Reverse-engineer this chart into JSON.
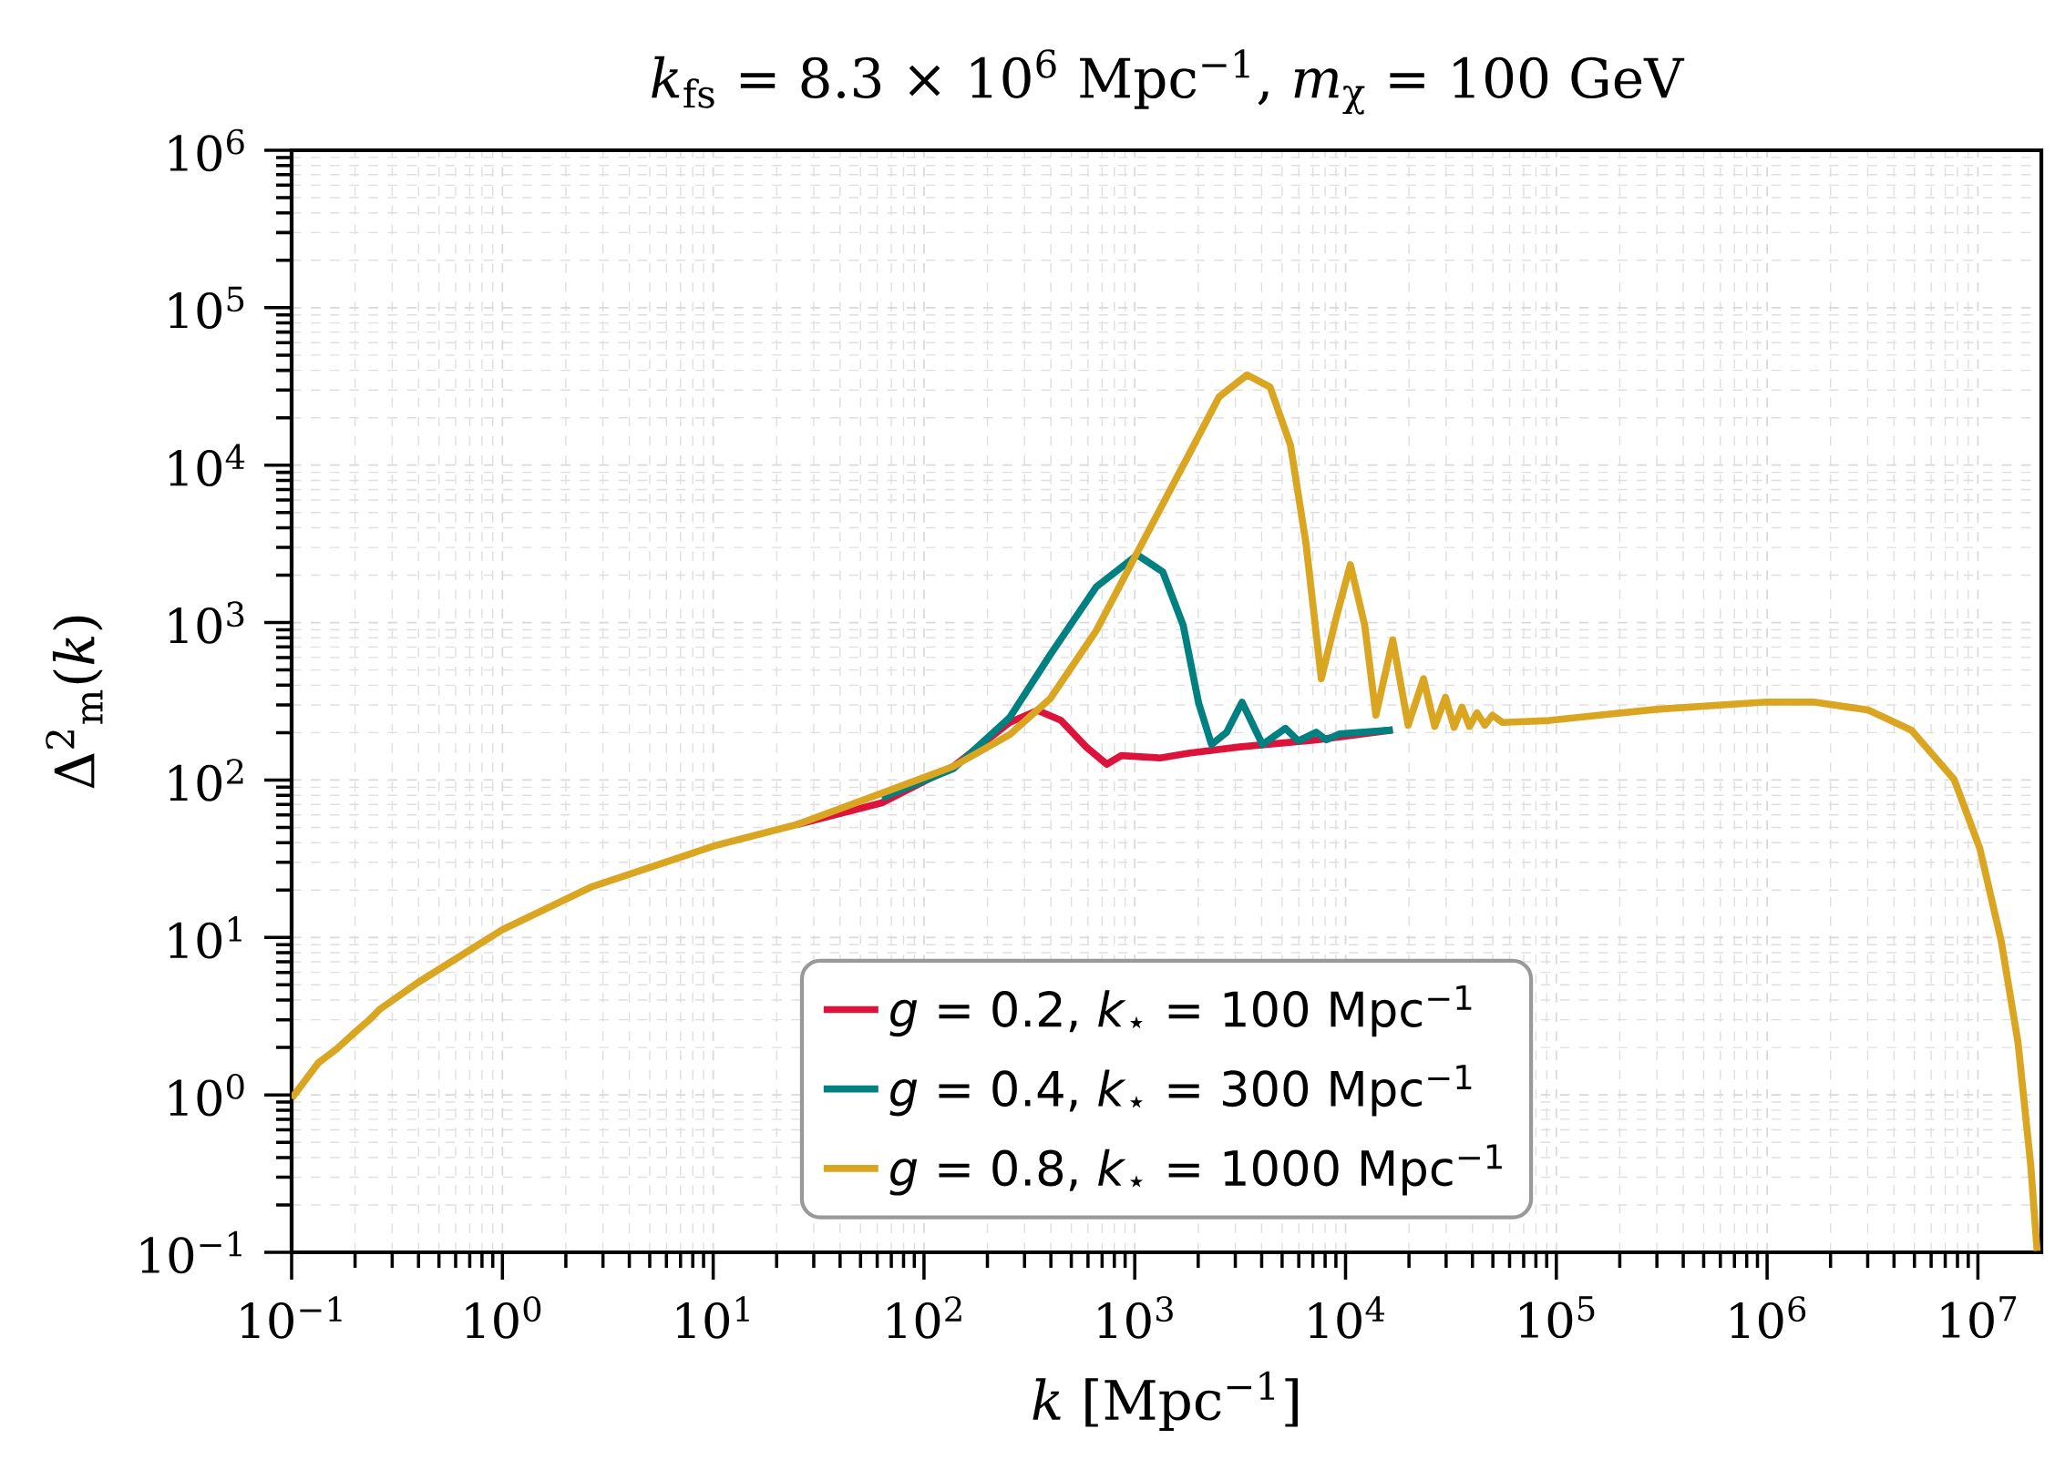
{
  "chart_data": {
    "type": "line",
    "title": "*k*$_{fs}$ = 8.3 × 10$^{6}$ Mpc$^{−1}$,    *m*$_{χ}$ = 100 GeV",
    "xlabel": "*k* [Mpc$^{−1}$]",
    "ylabel": "Δ$^{2}$$_{m}$(*k*)",
    "log": "xy",
    "grid": true,
    "legend": "bottom",
    "xlim": [
      0.1,
      20000000
    ],
    "ylim": [
      0.1,
      1000000
    ],
    "xticks": [
      {
        "value": 0.1,
        "label": "10$^{−1}$"
      },
      {
        "value": 1,
        "label": "10$^{0}$"
      },
      {
        "value": 10,
        "label": "10$^{1}$"
      },
      {
        "value": 100,
        "label": "10$^{2}$"
      },
      {
        "value": 1000,
        "label": "10$^{3}$"
      },
      {
        "value": 10000,
        "label": "10$^{4}$"
      },
      {
        "value": 100000,
        "label": "10$^{5}$"
      },
      {
        "value": 1000000,
        "label": "10$^{6}$"
      },
      {
        "value": 10000000,
        "label": "10$^{7}$"
      }
    ],
    "yticks": [
      {
        "value": 0.1,
        "label": "10$^{−1}$"
      },
      {
        "value": 1,
        "label": "10$^{0}$"
      },
      {
        "value": 10,
        "label": "10$^{1}$"
      },
      {
        "value": 100,
        "label": "10$^{2}$"
      },
      {
        "value": 1000,
        "label": "10$^{3}$"
      },
      {
        "value": 10000,
        "label": "10$^{4}$"
      },
      {
        "value": 100000,
        "label": "10$^{5}$"
      },
      {
        "value": 1000000,
        "label": "10$^{6}$"
      }
    ],
    "series": [
      {
        "name": "*g* = 0.2,  *k*$_{⋆}$ = 100 Mpc$^{−1}$",
        "color": "#dc143c",
        "x": [
          24.8,
          63.1,
          138,
          255,
          346,
          445,
          589,
          736,
          863,
          1321,
          1799,
          3141,
          7261,
          16750
        ],
        "values": [
          52,
          71.6,
          122,
          232,
          277,
          240,
          162,
          126,
          143,
          138,
          148,
          162,
          180,
          208
        ]
      },
      {
        "name": "*g* = 0.4,  *k*$_{⋆}$ = 300 Mpc$^{−1}$",
        "color": "#008080",
        "x": [
          63.1,
          138,
          255,
          398,
          658,
          1028,
          1358,
          1698,
          2009,
          2312,
          2729,
          3228,
          4036,
          5188,
          5970,
          7261,
          8110,
          9333,
          16750
        ],
        "values": [
          76.9,
          118,
          249,
          627,
          1690,
          2690,
          2100,
          959,
          308,
          168,
          201,
          312,
          168,
          213,
          177,
          201,
          180,
          196,
          208
        ]
      },
      {
        "name": "*g* = 0.8,  *k*$_{⋆}$ = 1000 Mpc$^{−1}$",
        "color": "#daa520",
        "x": [
          0.1,
          0.134,
          0.163,
          0.2,
          0.234,
          0.262,
          0.4,
          1,
          2.66,
          10,
          24.8,
          63.1,
          138,
          255,
          398,
          658,
          1028,
          1799,
          2512,
          3412,
          4385,
          5483,
          6486,
          7674,
          9078,
          10540,
          12330,
          13930,
          16750,
          19820,
          23440,
          26490,
          29790,
          32730,
          35650,
          38730,
          42070,
          45810,
          49770,
          55590,
          92700,
          296700,
          994000,
          1660000,
          3030000,
          4840000,
          7710000,
          10200000,
          12900000,
          15500000,
          17800000,
          19100000
        ],
        "values": [
          0.95,
          1.6,
          1.95,
          2.5,
          3.0,
          3.5,
          5.2,
          11.2,
          21,
          38,
          52,
          82.6,
          122,
          194,
          330,
          893,
          2790,
          11560,
          27160,
          37410,
          31330,
          13340,
          3210,
          440,
          1107,
          2333,
          959,
          258,
          776,
          223,
          440,
          219,
          335,
          216,
          290,
          219,
          267,
          223,
          258,
          232,
          239,
          281,
          313,
          313,
          278,
          207,
          101,
          37,
          9.5,
          2.15,
          0.36,
          0.102
        ]
      }
    ]
  }
}
